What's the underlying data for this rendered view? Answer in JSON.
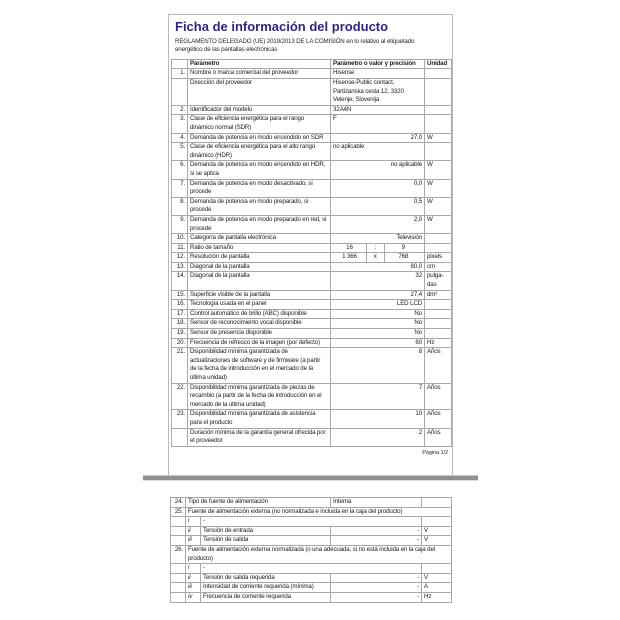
{
  "colors": {
    "title_text": "#2c2786",
    "table_border": "#a8a8a8",
    "separator_bar": "#8f8f8f",
    "page_border": "#b9b9b9"
  },
  "page1": {
    "title": "Ficha de información del producto",
    "subtitle": "REGLAMENTO DELEGADO (UE) 2019/2013 DE LA COMISIÓN en lo relativo al etiquetado energético de las pantallas electrónicas",
    "table_header": {
      "param": "Parámetro",
      "value": "Parámetro o valor y precisión",
      "unit": "Unidad"
    },
    "rows": [
      {
        "num": "1.",
        "param": "Nombre o marca comercial del proveedor",
        "value": "Hisense",
        "valign": "l",
        "unit": ""
      },
      {
        "num": "",
        "param": "Dirección del proveedor",
        "value": "Hisense-Public contact, Partizanska cesta 12, 3320 Velenje, Slovenija",
        "valign": "l",
        "unit": ""
      },
      {
        "num": "2.",
        "param": "Identificador del modelo",
        "value": "32A4N",
        "valign": "l",
        "unit": ""
      },
      {
        "num": "3.",
        "param": "Clase de eficiencia energética para el rango dinámico normal (SDR)",
        "value": "F",
        "valign": "l",
        "unit": ""
      },
      {
        "num": "4.",
        "param": "Demanda de potencia en modo encendido en SDR",
        "value": "27,0",
        "valign": "r",
        "unit": "W"
      },
      {
        "num": "5.",
        "param": "Clase de eficiencia energética para el alto rango dinámico (HDR)",
        "value": "no aplicable",
        "valign": "l",
        "unit": ""
      },
      {
        "num": "6.",
        "param": "Demanda de potencia en modo encendido en HDR, si se aplica",
        "value": "no aplicable",
        "valign": "r",
        "unit": "W"
      },
      {
        "num": "7.",
        "param": "Demanda de potencia en modo desactivado, si procede",
        "value": "0,0",
        "valign": "r",
        "unit": "W"
      },
      {
        "num": "8.",
        "param": "Demanda de potencia en modo preparado, si procede",
        "value": "0,5",
        "valign": "r",
        "unit": "W"
      },
      {
        "num": "9.",
        "param": "Demanda de potencia en modo preparado en red, si procede",
        "value": "2,0",
        "valign": "r",
        "unit": "W"
      },
      {
        "num": "10.",
        "param": "Categoría de pantalla electrónica",
        "value": "Televisión",
        "valign": "r",
        "unit": ""
      },
      {
        "num": "11.",
        "param": "Ratio de tamaño",
        "split": [
          "16",
          ":",
          "9"
        ],
        "unit": ""
      },
      {
        "num": "12.",
        "param": "Resolución de pantalla",
        "split": [
          "1 366",
          "x",
          "768"
        ],
        "unit": "pixels"
      },
      {
        "num": "13.",
        "param": "Diagonal de la pantalla",
        "value": "80,0",
        "valign": "r",
        "unit": "cm"
      },
      {
        "num": "14.",
        "param": "Diagonal de la pantalla",
        "value": "32",
        "valign": "r",
        "unit": "pulga-das"
      },
      {
        "num": "15.",
        "param": "Superficie visible de la pantalla",
        "value": "27,4",
        "valign": "r",
        "unit": "dm²"
      },
      {
        "num": "16.",
        "param": "Tecnología usada en el panel",
        "value": "LED LCD",
        "valign": "r",
        "unit": ""
      },
      {
        "num": "17.",
        "param": "Control automático de brillo (ABC) disponible",
        "value": "No",
        "valign": "r",
        "unit": ""
      },
      {
        "num": "18.",
        "param": "Sensor de reconocimiento vocal disponible",
        "value": "No",
        "valign": "r",
        "unit": ""
      },
      {
        "num": "19.",
        "param": "Sensor de presencia disponible",
        "value": "No",
        "valign": "r",
        "unit": ""
      },
      {
        "num": "20.",
        "param": "Frecuencia de refresco de la imagen (por defecto)",
        "value": "60",
        "valign": "r",
        "unit": "Hz"
      },
      {
        "num": "21.",
        "param": "Disponibilidad mínima garantizada de actualizaciones de software y de firmware (a partir de la fecha de introducción en el mercado de la última unidad)",
        "value": "8",
        "valign": "r",
        "unit": "Años"
      },
      {
        "num": "22.",
        "param": "Disponibilidad mínima garantizada de piezas de recambio (a partir de la fecha de introducción en el mercado de la última unidad)",
        "value": "7",
        "valign": "r",
        "unit": "Años"
      },
      {
        "num": "23.",
        "param": "Disponibilidad mínima garantizada de asistencia para el producto",
        "value": "10",
        "valign": "r",
        "unit": "Años"
      },
      {
        "num": "",
        "param": "Duración mínima de la garantía general ofrecida por el proveedor",
        "value": "2",
        "valign": "r",
        "unit": "Años"
      }
    ],
    "footer": "Página 1/2"
  },
  "page2": {
    "rows": [
      {
        "type": "main",
        "num": "24.",
        "desc": "Tipo de fuente de alimentación",
        "value": "Interna",
        "unit": ""
      },
      {
        "type": "full",
        "num": "25.",
        "desc": "Fuente de alimentación externa (no normalizada e incluida en la caja del producto)"
      },
      {
        "type": "dash",
        "letter": "i",
        "desc": "-"
      },
      {
        "type": "sub",
        "letter": "ii",
        "desc": "Tensión de entrada",
        "value": "-",
        "unit": "V"
      },
      {
        "type": "sub",
        "letter": "iii",
        "desc": "Tensión de salida",
        "value": "-",
        "unit": "V"
      },
      {
        "type": "full",
        "num": "26.",
        "desc": "Fuente de alimentación externa normalizada (o una adecuada, si no está incluida en la caja del producto)"
      },
      {
        "type": "dash",
        "letter": "i",
        "desc": "-"
      },
      {
        "type": "sub",
        "letter": "ii",
        "desc": "Tensión de salida requerida",
        "value": "-",
        "unit": "V"
      },
      {
        "type": "sub",
        "letter": "iii",
        "desc": "Intensidad de corriente requerida (mínima)",
        "value": "-",
        "unit": "A"
      },
      {
        "type": "sub",
        "letter": "iv",
        "desc": "Frecuencia de corriente requerida",
        "value": "-",
        "unit": "Hz"
      }
    ]
  }
}
